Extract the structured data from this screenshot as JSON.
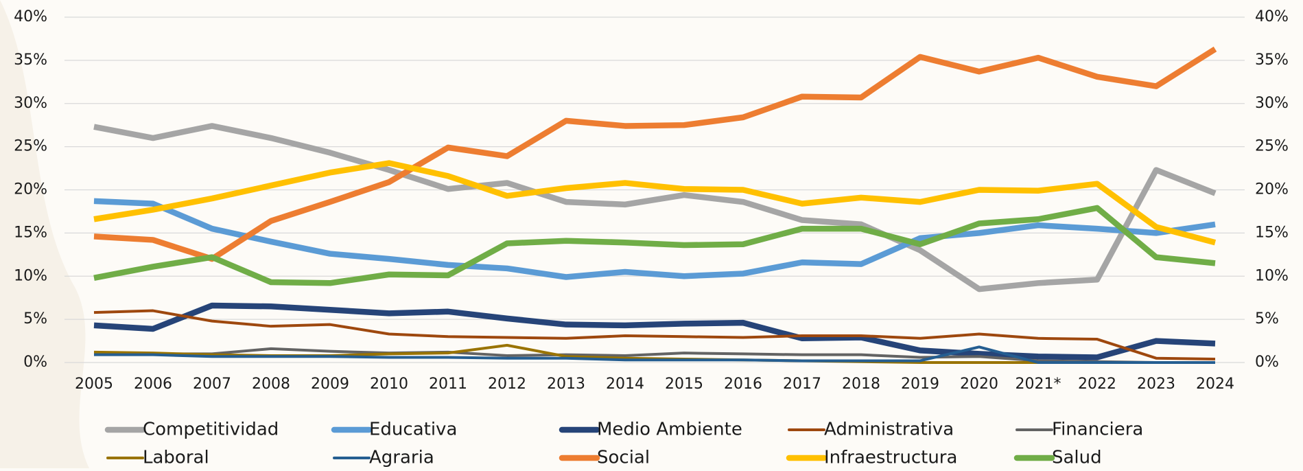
{
  "chart_data": {
    "type": "line",
    "categories": [
      "2005",
      "2006",
      "2007",
      "2008",
      "2009",
      "2010",
      "2011",
      "2012",
      "2013",
      "2014",
      "2015",
      "2016",
      "2017",
      "2018",
      "2019",
      "2020",
      "2021*",
      "2022",
      "2023",
      "2024"
    ],
    "series": [
      {
        "name": "Competitividad",
        "color": "#a5a5a5",
        "values": [
          27.3,
          26.0,
          27.4,
          26.0,
          24.3,
          22.3,
          20.1,
          20.8,
          18.6,
          18.3,
          19.4,
          18.6,
          16.5,
          16.0,
          13.0,
          8.5,
          9.2,
          9.6,
          22.3,
          19.6
        ]
      },
      {
        "name": "Educativa",
        "color": "#5b9bd5",
        "values": [
          18.7,
          18.4,
          15.5,
          14.0,
          12.6,
          12.0,
          11.3,
          10.9,
          9.9,
          10.5,
          10.0,
          10.3,
          11.6,
          11.4,
          14.4,
          15.0,
          15.9,
          15.5,
          15.0,
          16.0
        ]
      },
      {
        "name": "Medio Ambiente",
        "color": "#264478",
        "values": [
          4.3,
          3.9,
          6.6,
          6.5,
          6.1,
          5.7,
          5.9,
          5.1,
          4.4,
          4.3,
          4.5,
          4.6,
          2.8,
          2.9,
          1.4,
          1.0,
          0.7,
          0.6,
          2.5,
          2.2
        ]
      },
      {
        "name": "Administrativa",
        "color": "#9e480e",
        "values": [
          5.8,
          6.0,
          4.8,
          4.2,
          4.4,
          3.3,
          3.0,
          2.9,
          2.8,
          3.1,
          3.0,
          2.9,
          3.1,
          3.1,
          2.8,
          3.3,
          2.8,
          2.7,
          0.5,
          0.4
        ]
      },
      {
        "name": "Financiera",
        "color": "#636363",
        "values": [
          1.0,
          1.0,
          1.0,
          1.6,
          1.3,
          1.1,
          1.2,
          0.8,
          0.9,
          0.8,
          1.1,
          1.0,
          0.9,
          0.9,
          0.6,
          0.7,
          0.2,
          0.1,
          0.0,
          0.0
        ]
      },
      {
        "name": "Laboral",
        "color": "#997300",
        "values": [
          1.2,
          1.1,
          0.9,
          0.8,
          0.8,
          1.0,
          1.1,
          2.0,
          0.7,
          0.5,
          0.4,
          0.3,
          0.2,
          0.1,
          0.0,
          0.0,
          0.0,
          null,
          null,
          null
        ]
      },
      {
        "name": "Agraria",
        "color": "#255e91",
        "values": [
          0.9,
          0.9,
          0.7,
          0.7,
          0.7,
          0.6,
          0.6,
          0.5,
          0.5,
          0.3,
          0.3,
          0.3,
          0.2,
          0.2,
          0.2,
          1.8,
          0.0,
          0.0,
          0.0,
          0.0
        ]
      },
      {
        "name": "Social",
        "color": "#ed7d31",
        "values": [
          14.6,
          14.2,
          12.0,
          16.4,
          18.6,
          20.9,
          24.9,
          23.9,
          28.0,
          27.4,
          27.5,
          28.4,
          30.8,
          30.7,
          35.4,
          33.7,
          35.3,
          33.1,
          32.0,
          36.3
        ]
      },
      {
        "name": "Infraestructura",
        "color": "#ffc000",
        "values": [
          16.6,
          17.7,
          19.0,
          20.5,
          22.0,
          23.1,
          21.6,
          19.3,
          20.2,
          20.8,
          20.1,
          20.0,
          18.4,
          19.1,
          18.6,
          20.0,
          19.9,
          20.7,
          15.7,
          13.9
        ]
      },
      {
        "name": "Salud",
        "color": "#70ad47",
        "values": [
          9.8,
          11.1,
          12.2,
          9.3,
          9.2,
          10.2,
          10.1,
          13.8,
          14.1,
          13.9,
          13.6,
          13.7,
          15.5,
          15.5,
          13.7,
          16.1,
          16.6,
          17.9,
          12.2,
          11.5
        ]
      }
    ],
    "ylim": [
      0,
      40
    ],
    "yticks": [
      {
        "value": 0,
        "label": "0%"
      },
      {
        "value": 5,
        "label": "5%"
      },
      {
        "value": 10,
        "label": "10%"
      },
      {
        "value": 15,
        "label": "15%"
      },
      {
        "value": 20,
        "label": "20%"
      },
      {
        "value": 25,
        "label": "25%"
      },
      {
        "value": 30,
        "label": "30%"
      },
      {
        "value": 35,
        "label": "35%"
      },
      {
        "value": 40,
        "label": "40%"
      }
    ],
    "y2lim": [
      0,
      40
    ],
    "y2ticks": [
      {
        "value": 0,
        "label": "0%"
      },
      {
        "value": 5,
        "label": "5%"
      },
      {
        "value": 10,
        "label": "10%"
      },
      {
        "value": 15,
        "label": "15%"
      },
      {
        "value": 20,
        "label": "20%"
      },
      {
        "value": 25,
        "label": "25%"
      },
      {
        "value": 30,
        "label": "30%"
      },
      {
        "value": 35,
        "label": "35%"
      },
      {
        "value": 40,
        "label": "40%"
      }
    ],
    "grid": true,
    "legend": "bottom"
  }
}
